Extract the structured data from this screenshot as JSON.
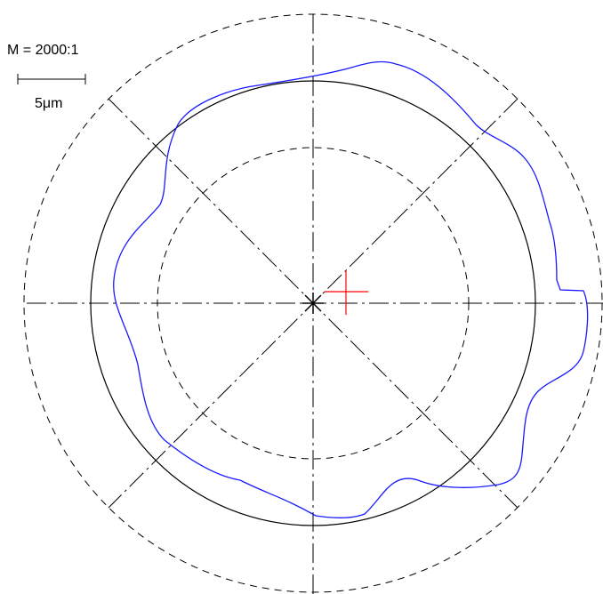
{
  "magnification": {
    "text": "M = 2000:1"
  },
  "scale_bar": {
    "text": "5μm"
  },
  "colors": {
    "reference": "#000000",
    "profile": "#1a1aff",
    "center_marker": "#ff0000",
    "background": "#ffffff"
  },
  "elements": {
    "outer_dashed_circle": "outer-tolerance-circle",
    "inner_dashed_circle": "inner-tolerance-circle",
    "reference_circle": "reference-circle",
    "measured_profile": "measured-profile",
    "center_cross": "center-cross",
    "profile_center_marker": "profile-center-marker"
  }
}
